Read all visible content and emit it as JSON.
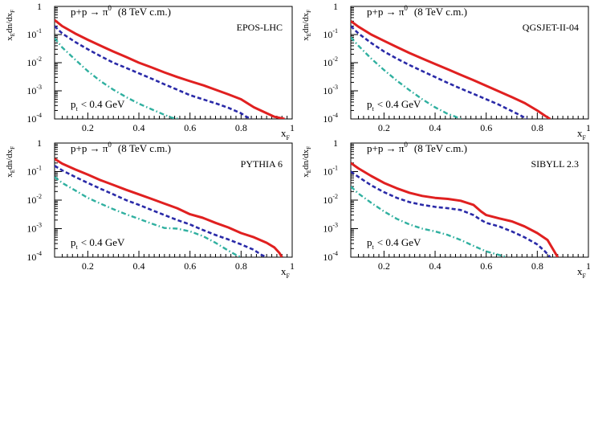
{
  "colors": {
    "total": "#e02020",
    "mid": "#2a2aa8",
    "low": "#30b0a0",
    "axis": "#000000",
    "background": "#ffffff"
  },
  "chart_data": [
    {
      "type": "line",
      "process": "p+p → π⁰ (8 TeV c.m.)",
      "process_label": {
        "lhs": "p+p → π",
        "sup": "0",
        "rhs": "(8 TeV c.m.)"
      },
      "model_label": "EPOS-LHC",
      "cut_label": {
        "base": "p",
        "sub": "t",
        "rest": "< 0.4 GeV"
      },
      "xlabel": {
        "base": "x",
        "sub": "F"
      },
      "ylabel": {
        "a": "x",
        "a_sub": "E",
        "b": "dn/dx",
        "b_sub": "F"
      },
      "xlim": [
        0.07,
        1.0
      ],
      "ylim": [
        0.0001,
        1
      ],
      "yscale": "log",
      "xticks": [
        0.2,
        0.4,
        0.6,
        0.8,
        1
      ],
      "xtick_labels": [
        "0.2",
        "0.4",
        "0.6",
        "0.8",
        "1"
      ],
      "ytick_labels": [
        {
          "base": "10",
          "exp": "-4"
        },
        {
          "base": "10",
          "exp": "-3"
        },
        {
          "base": "10",
          "exp": "-2"
        },
        {
          "base": "10",
          "exp": "-1"
        },
        {
          "base": "1",
          "exp": ""
        }
      ],
      "series": [
        {
          "style": "solid",
          "color": "total",
          "x": [
            0.07,
            0.1,
            0.15,
            0.2,
            0.25,
            0.3,
            0.35,
            0.4,
            0.45,
            0.5,
            0.55,
            0.6,
            0.65,
            0.7,
            0.75,
            0.8,
            0.85,
            0.9,
            0.93,
            0.97
          ],
          "y": [
            0.33,
            0.2,
            0.11,
            0.065,
            0.04,
            0.025,
            0.016,
            0.01,
            0.0068,
            0.0045,
            0.0031,
            0.0022,
            0.0016,
            0.0011,
            0.00075,
            0.0005,
            0.00026,
            0.00016,
            0.00012,
            0.0001
          ]
        },
        {
          "style": "dashed",
          "color": "mid",
          "x": [
            0.07,
            0.1,
            0.15,
            0.2,
            0.25,
            0.3,
            0.35,
            0.4,
            0.45,
            0.5,
            0.55,
            0.6,
            0.65,
            0.7,
            0.75,
            0.8,
            0.82,
            0.84
          ],
          "y": [
            0.2,
            0.11,
            0.055,
            0.03,
            0.017,
            0.01,
            0.0065,
            0.0042,
            0.0027,
            0.0017,
            0.0011,
            0.0007,
            0.0005,
            0.00036,
            0.00025,
            0.00016,
            0.00012,
            0.0001
          ]
        },
        {
          "style": "dashdot",
          "color": "low",
          "x": [
            0.07,
            0.1,
            0.15,
            0.2,
            0.25,
            0.3,
            0.35,
            0.4,
            0.45,
            0.5,
            0.53,
            0.56
          ],
          "y": [
            0.075,
            0.035,
            0.013,
            0.005,
            0.0022,
            0.0011,
            0.0006,
            0.00035,
            0.00022,
            0.00014,
            0.00011,
            0.0001
          ]
        }
      ]
    },
    {
      "type": "line",
      "process": "p+p → π⁰ (8 TeV c.m.)",
      "process_label": {
        "lhs": "p+p → π",
        "sup": "0",
        "rhs": "(8 TeV c.m.)"
      },
      "model_label": "QGSJET-II-04",
      "cut_label": {
        "base": "p",
        "sub": "t",
        "rest": "< 0.4 GeV"
      },
      "xlabel": {
        "base": "x",
        "sub": "F"
      },
      "ylabel": {
        "a": "x",
        "a_sub": "E",
        "b": "dn/dx",
        "b_sub": "F"
      },
      "xlim": [
        0.07,
        1.0
      ],
      "ylim": [
        0.0001,
        1
      ],
      "yscale": "log",
      "xticks": [
        0.2,
        0.4,
        0.6,
        0.8,
        1
      ],
      "xtick_labels": [
        "0.2",
        "0.4",
        "0.6",
        "0.8",
        "1"
      ],
      "ytick_labels": [
        {
          "base": "10",
          "exp": "-4"
        },
        {
          "base": "10",
          "exp": "-3"
        },
        {
          "base": "10",
          "exp": "-2"
        },
        {
          "base": "10",
          "exp": "-1"
        },
        {
          "base": "1",
          "exp": ""
        }
      ],
      "series": [
        {
          "style": "solid",
          "color": "total",
          "x": [
            0.07,
            0.1,
            0.15,
            0.2,
            0.25,
            0.3,
            0.35,
            0.4,
            0.45,
            0.5,
            0.55,
            0.6,
            0.65,
            0.7,
            0.75,
            0.8,
            0.83,
            0.85
          ],
          "y": [
            0.3,
            0.19,
            0.1,
            0.06,
            0.036,
            0.022,
            0.014,
            0.009,
            0.0058,
            0.0037,
            0.0024,
            0.0015,
            0.00095,
            0.0006,
            0.00037,
            0.0002,
            0.00013,
            0.0001
          ]
        },
        {
          "style": "dashed",
          "color": "mid",
          "x": [
            0.07,
            0.1,
            0.15,
            0.2,
            0.25,
            0.3,
            0.35,
            0.4,
            0.45,
            0.5,
            0.55,
            0.6,
            0.65,
            0.7,
            0.73,
            0.76
          ],
          "y": [
            0.2,
            0.11,
            0.05,
            0.025,
            0.014,
            0.0082,
            0.005,
            0.0031,
            0.0019,
            0.0012,
            0.00078,
            0.0005,
            0.00032,
            0.00019,
            0.00014,
            0.0001
          ]
        },
        {
          "style": "dashdot",
          "color": "low",
          "x": [
            0.07,
            0.1,
            0.15,
            0.2,
            0.25,
            0.3,
            0.35,
            0.4,
            0.45,
            0.48,
            0.5
          ],
          "y": [
            0.08,
            0.04,
            0.014,
            0.0055,
            0.0023,
            0.00105,
            0.0005,
            0.00026,
            0.00015,
            0.00012,
            0.0001
          ]
        }
      ]
    },
    {
      "type": "line",
      "process": "p+p → π⁰ (8 TeV c.m.)",
      "process_label": {
        "lhs": "p+p → π",
        "sup": "0",
        "rhs": "(8 TeV c.m.)"
      },
      "model_label": "PYTHIA 6",
      "cut_label": {
        "base": "p",
        "sub": "t",
        "rest": "< 0.4 GeV"
      },
      "xlabel": {
        "base": "x",
        "sub": "F"
      },
      "ylabel": {
        "a": "x",
        "a_sub": "E",
        "b": "dn/dx",
        "b_sub": "F"
      },
      "xlim": [
        0.07,
        1.0
      ],
      "ylim": [
        0.0001,
        1
      ],
      "yscale": "log",
      "xticks": [
        0.2,
        0.4,
        0.6,
        0.8,
        1
      ],
      "xtick_labels": [
        "0.2",
        "0.4",
        "0.6",
        "0.8",
        "1"
      ],
      "ytick_labels": [
        {
          "base": "10",
          "exp": "-4"
        },
        {
          "base": "10",
          "exp": "-3"
        },
        {
          "base": "10",
          "exp": "-2"
        },
        {
          "base": "10",
          "exp": "-1"
        },
        {
          "base": "1",
          "exp": ""
        }
      ],
      "series": [
        {
          "style": "solid",
          "color": "total",
          "x": [
            0.07,
            0.1,
            0.15,
            0.2,
            0.25,
            0.3,
            0.35,
            0.4,
            0.45,
            0.5,
            0.55,
            0.6,
            0.65,
            0.7,
            0.75,
            0.8,
            0.85,
            0.9,
            0.93,
            0.95,
            0.96
          ],
          "y": [
            0.28,
            0.19,
            0.12,
            0.078,
            0.05,
            0.034,
            0.023,
            0.016,
            0.011,
            0.0075,
            0.0052,
            0.0032,
            0.0024,
            0.0016,
            0.0011,
            0.0007,
            0.0005,
            0.00032,
            0.00022,
            0.00014,
            0.0001
          ]
        },
        {
          "style": "dashed",
          "color": "mid",
          "x": [
            0.07,
            0.1,
            0.15,
            0.2,
            0.25,
            0.3,
            0.35,
            0.4,
            0.45,
            0.5,
            0.55,
            0.6,
            0.65,
            0.7,
            0.75,
            0.8,
            0.85,
            0.88,
            0.9
          ],
          "y": [
            0.16,
            0.11,
            0.065,
            0.04,
            0.025,
            0.016,
            0.01,
            0.0068,
            0.0045,
            0.003,
            0.002,
            0.0014,
            0.0009,
            0.0006,
            0.00042,
            0.00028,
            0.00018,
            0.00012,
            0.0001
          ]
        },
        {
          "style": "dashdot",
          "color": "low",
          "x": [
            0.07,
            0.1,
            0.15,
            0.2,
            0.25,
            0.3,
            0.35,
            0.4,
            0.45,
            0.5,
            0.55,
            0.6,
            0.65,
            0.7,
            0.75,
            0.78,
            0.8
          ],
          "y": [
            0.065,
            0.04,
            0.022,
            0.012,
            0.0075,
            0.0048,
            0.0032,
            0.0022,
            0.0015,
            0.00105,
            0.001,
            0.0008,
            0.00055,
            0.00032,
            0.00017,
            0.00012,
            0.0001
          ]
        }
      ]
    },
    {
      "type": "line",
      "process": "p+p → π⁰ (8 TeV c.m.)",
      "process_label": {
        "lhs": "p+p → π",
        "sup": "0",
        "rhs": "(8 TeV c.m.)"
      },
      "model_label": "SIBYLL 2.3",
      "cut_label": {
        "base": "p",
        "sub": "t",
        "rest": "< 0.4 GeV"
      },
      "xlabel": {
        "base": "x",
        "sub": "F"
      },
      "ylabel": {
        "a": "x",
        "a_sub": "E",
        "b": "dn/dx",
        "b_sub": "F"
      },
      "xlim": [
        0.07,
        1.0
      ],
      "ylim": [
        0.0001,
        1
      ],
      "yscale": "log",
      "xticks": [
        0.2,
        0.4,
        0.6,
        0.8,
        1
      ],
      "xtick_labels": [
        "0.2",
        "0.4",
        "0.6",
        "0.8",
        "1"
      ],
      "ytick_labels": [
        {
          "base": "10",
          "exp": "-4"
        },
        {
          "base": "10",
          "exp": "-3"
        },
        {
          "base": "10",
          "exp": "-2"
        },
        {
          "base": "10",
          "exp": "-1"
        },
        {
          "base": "1",
          "exp": ""
        }
      ],
      "series": [
        {
          "style": "solid",
          "color": "total",
          "x": [
            0.07,
            0.1,
            0.15,
            0.2,
            0.25,
            0.3,
            0.35,
            0.4,
            0.45,
            0.5,
            0.55,
            0.58,
            0.6,
            0.65,
            0.7,
            0.75,
            0.8,
            0.84,
            0.86,
            0.88
          ],
          "y": [
            0.2,
            0.13,
            0.07,
            0.04,
            0.026,
            0.018,
            0.014,
            0.012,
            0.011,
            0.0095,
            0.0068,
            0.004,
            0.003,
            0.0023,
            0.0018,
            0.0012,
            0.0007,
            0.0004,
            0.0002,
            0.0001
          ]
        },
        {
          "style": "dashed",
          "color": "mid",
          "x": [
            0.07,
            0.1,
            0.15,
            0.2,
            0.25,
            0.3,
            0.35,
            0.4,
            0.45,
            0.5,
            0.55,
            0.58,
            0.6,
            0.65,
            0.7,
            0.75,
            0.8,
            0.83,
            0.85
          ],
          "y": [
            0.1,
            0.065,
            0.033,
            0.019,
            0.012,
            0.0085,
            0.0068,
            0.0058,
            0.0052,
            0.0045,
            0.003,
            0.002,
            0.0016,
            0.0012,
            0.0008,
            0.0005,
            0.00028,
            0.00016,
            0.0001
          ]
        },
        {
          "style": "dashdot",
          "color": "low",
          "x": [
            0.07,
            0.1,
            0.15,
            0.2,
            0.25,
            0.3,
            0.35,
            0.4,
            0.45,
            0.5,
            0.55,
            0.6,
            0.65,
            0.68
          ],
          "y": [
            0.03,
            0.017,
            0.008,
            0.004,
            0.0022,
            0.0014,
            0.001,
            0.0008,
            0.0006,
            0.0004,
            0.00025,
            0.00016,
            0.00012,
            0.0001
          ]
        }
      ]
    }
  ]
}
